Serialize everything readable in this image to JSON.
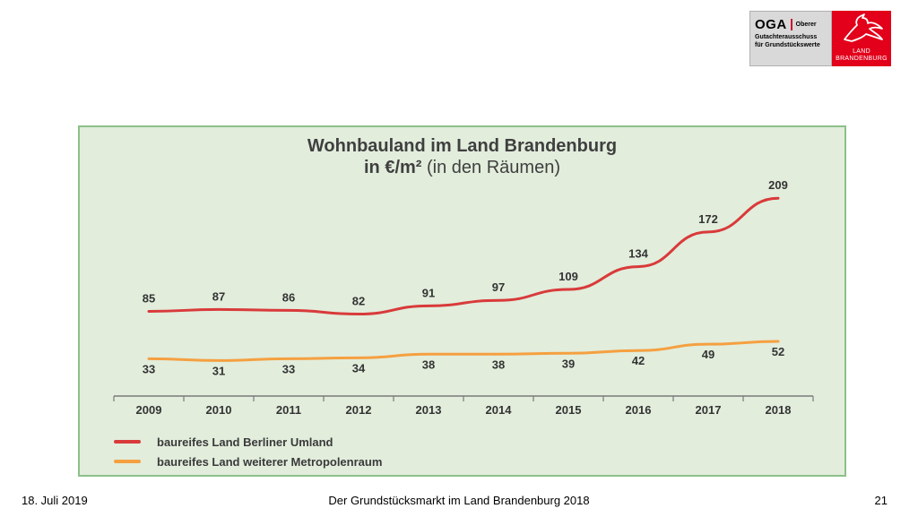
{
  "logo": {
    "oga_abbr": "OGA",
    "oga_word": "Oberer",
    "oga_line2": "Gutachterausschuss",
    "oga_line3": "für Grundstückswerte",
    "land_line1": "LAND",
    "land_line2": "BRANDENBURG"
  },
  "chart": {
    "title": "Wohnbauland im Land Brandenburg",
    "subtitle_bold": "in €/m²",
    "subtitle_rest": " (in den Räumen)"
  },
  "chart_data": {
    "type": "line",
    "title": "Wohnbauland im Land Brandenburg in €/m² (in den Räumen)",
    "x": [
      "2009",
      "2010",
      "2011",
      "2012",
      "2013",
      "2014",
      "2015",
      "2016",
      "2017",
      "2018"
    ],
    "series": [
      {
        "name": "baureifes Land Berliner Umland",
        "color": "#d93a3a",
        "values": [
          85,
          87,
          86,
          82,
          91,
          97,
          109,
          134,
          172,
          209
        ]
      },
      {
        "name": "baureifes Land weiterer Metropolenraum",
        "color": "#f5a040",
        "values": [
          33,
          31,
          33,
          34,
          38,
          38,
          39,
          42,
          49,
          52
        ]
      }
    ],
    "ylim": [
      0,
      220
    ],
    "grid": false,
    "legend": "bottom-left"
  },
  "footer": {
    "date": "18. Juli 2019",
    "title": "Der Grundstücksmarkt im Land Brandenburg 2018",
    "page": "21"
  }
}
